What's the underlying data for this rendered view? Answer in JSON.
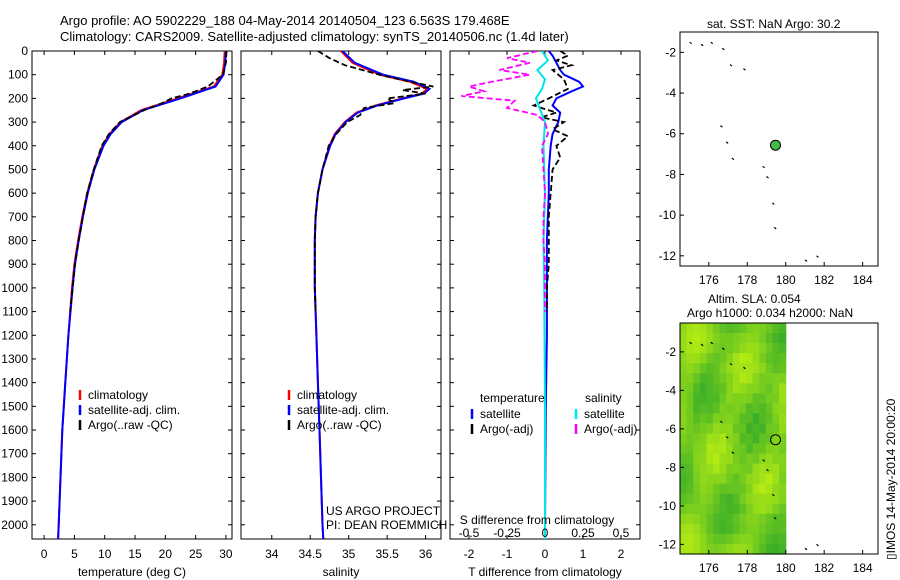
{
  "header": {
    "line1": "Argo profile: AO 5902229_188 04-May-2014 20140504_123 6.563S 179.468E",
    "line2": "Climatology: CARS2009. Satellite-adjusted climatology: synTS_20140506.nc (1.4d later)"
  },
  "side_stamp": "IMOS 14-May-2014 20:00:20",
  "colors": {
    "climatology": "#ff0000",
    "satellite": "#0000ff",
    "argo": "#000000",
    "cyan": "#00e5e5",
    "magenta": "#ff00ff",
    "dot": "#44bb44"
  },
  "chart_data": [
    {
      "type": "line",
      "id": "temperature",
      "xlabel": "temperature (deg C)",
      "ylabel": "",
      "xlim": [
        -2,
        31
      ],
      "ylim": [
        2060,
        0
      ],
      "xticks": [
        0,
        5,
        10,
        15,
        20,
        25,
        30
      ],
      "yticks": [
        0,
        100,
        200,
        300,
        400,
        500,
        600,
        700,
        800,
        900,
        1000,
        1100,
        1200,
        1300,
        1400,
        1500,
        1600,
        1700,
        1800,
        1900,
        2000
      ],
      "legend": [
        "climatology",
        "satellite-adj. clim.",
        "Argo(..raw -QC)"
      ],
      "series": [
        {
          "name": "climatology",
          "depth": [
            0,
            50,
            100,
            150,
            200,
            250,
            300,
            350,
            400,
            500,
            600,
            700,
            800,
            900,
            1000,
            1200,
            1400,
            1600,
            1800,
            2000,
            2060
          ],
          "values": [
            29.8,
            29.7,
            29.4,
            28.0,
            22.0,
            16.0,
            12.6,
            10.8,
            9.6,
            8.2,
            7.1,
            6.3,
            5.6,
            5.0,
            4.6,
            4.0,
            3.5,
            3.0,
            2.7,
            2.4,
            2.3
          ]
        },
        {
          "name": "satellite-adj. clim.",
          "depth": [
            0,
            50,
            100,
            150,
            200,
            250,
            300,
            350,
            400,
            500,
            600,
            700,
            800,
            900,
            1000,
            1200,
            1400,
            1600,
            1800,
            2000,
            2060
          ],
          "values": [
            30.0,
            29.9,
            29.6,
            28.3,
            22.5,
            16.3,
            12.8,
            11.0,
            9.8,
            8.3,
            7.2,
            6.4,
            5.7,
            5.1,
            4.7,
            4.0,
            3.5,
            3.0,
            2.7,
            2.4,
            2.3
          ]
        },
        {
          "name": "Argo(..raw -QC)",
          "depth": [
            0,
            50,
            100,
            150,
            180,
            200,
            220,
            250,
            300,
            350,
            400,
            500,
            600,
            700,
            800,
            900,
            1000,
            1100
          ],
          "values": [
            30.1,
            30.0,
            29.5,
            27.0,
            24.0,
            21.0,
            19.5,
            16.5,
            12.5,
            10.7,
            9.5,
            8.2,
            7.1,
            6.4,
            5.7,
            5.1,
            4.7,
            4.3
          ]
        }
      ]
    },
    {
      "type": "line",
      "id": "salinity",
      "xlabel": "salinity",
      "ylabel": "",
      "xlim": [
        33.6,
        36.2
      ],
      "ylim": [
        2060,
        0
      ],
      "xticks": [
        34,
        34.5,
        35,
        35.5,
        36
      ],
      "legend": [
        "climatology",
        "satellite-adj. clim.",
        "Argo(..raw -QC)"
      ],
      "annotation": [
        "US ARGO PROJECT",
        "PI: DEAN ROEMMICH"
      ],
      "series": [
        {
          "name": "climatology",
          "depth": [
            0,
            50,
            100,
            130,
            160,
            180,
            200,
            230,
            260,
            300,
            350,
            400,
            500,
            600,
            700,
            800,
            1000,
            1200,
            1400,
            1600,
            1800,
            2000,
            2060
          ],
          "values": [
            34.9,
            35.05,
            35.4,
            35.8,
            36.02,
            35.95,
            35.7,
            35.35,
            35.1,
            34.95,
            34.82,
            34.75,
            34.66,
            34.6,
            34.57,
            34.56,
            34.56,
            34.58,
            34.6,
            34.62,
            34.64,
            34.66,
            34.67
          ]
        },
        {
          "name": "satellite-adj. clim.",
          "depth": [
            0,
            50,
            100,
            130,
            160,
            180,
            200,
            230,
            260,
            300,
            350,
            400,
            500,
            600,
            700,
            800,
            1000,
            1200,
            1400,
            1600,
            1800,
            2000,
            2060
          ],
          "values": [
            34.92,
            35.08,
            35.45,
            35.85,
            36.05,
            35.98,
            35.72,
            35.37,
            35.12,
            34.96,
            34.83,
            34.76,
            34.66,
            34.6,
            34.57,
            34.56,
            34.56,
            34.58,
            34.6,
            34.62,
            34.64,
            34.66,
            34.67
          ]
        },
        {
          "name": "Argo(..raw -QC)",
          "depth": [
            0,
            30,
            60,
            100,
            130,
            150,
            165,
            180,
            200,
            220,
            240,
            270,
            300,
            350,
            400,
            500,
            600,
            700,
            800,
            900,
            1000,
            1100
          ],
          "values": [
            34.6,
            34.75,
            34.95,
            35.4,
            35.8,
            36.1,
            35.7,
            36.0,
            35.5,
            35.6,
            35.2,
            35.15,
            34.98,
            34.84,
            34.74,
            34.66,
            34.6,
            34.57,
            34.56,
            34.56,
            34.56,
            34.57
          ]
        }
      ]
    },
    {
      "type": "line",
      "id": "differences",
      "xlabel": "T difference from climatology",
      "xlim": [
        -2.5,
        2.5
      ],
      "xticks": [
        -2,
        -1,
        0,
        1,
        2
      ],
      "top_axis_label": "S difference from climatology",
      "top_ticks": [
        "-0.5",
        "-0.25",
        "0",
        "0.25",
        "0.5"
      ],
      "ylim": [
        2060,
        0
      ],
      "legend_headers": [
        "temperature",
        "salinity"
      ],
      "legend": [
        "satellite",
        "Argo(-adj)",
        "satellite",
        "Argo(-adj)"
      ],
      "series": [
        {
          "name": "T satellite",
          "depth": [
            0,
            20,
            50,
            80,
            100,
            130,
            150,
            170,
            200,
            230,
            260,
            300,
            350,
            400,
            500,
            600,
            800,
            1000,
            1200,
            1500,
            2000,
            2060
          ],
          "values": [
            0.1,
            0.2,
            0.3,
            0.4,
            0.5,
            0.9,
            1.0,
            0.7,
            0.3,
            0.2,
            0.4,
            0.35,
            0.2,
            0.15,
            0.1,
            0.1,
            0.05,
            0.05,
            0.05,
            0.02,
            0.0,
            0.0
          ]
        },
        {
          "name": "T Argo(-adj)",
          "depth": [
            0,
            20,
            40,
            60,
            80,
            120,
            160,
            200,
            230,
            260,
            280,
            300,
            330,
            360,
            400,
            450,
            500,
            600,
            700,
            800,
            900,
            1000,
            1100
          ],
          "values": [
            0.4,
            0.6,
            0.3,
            0.7,
            0.2,
            0.5,
            0.6,
            0.1,
            -0.3,
            0.3,
            -0.1,
            0.5,
            0.2,
            0.6,
            0.3,
            0.4,
            0.2,
            0.15,
            0.1,
            0.1,
            0.1,
            0.05,
            0.05
          ]
        },
        {
          "name": "S satellite",
          "depth": [
            0,
            40,
            80,
            120,
            160,
            200,
            250,
            300,
            400,
            600,
            800,
            1000,
            1500,
            2000,
            2060
          ],
          "values": [
            -0.02,
            0.02,
            -0.05,
            0.0,
            -0.02,
            -0.06,
            -0.03,
            0.0,
            -0.01,
            0.0,
            -0.01,
            -0.005,
            0.0,
            0.0,
            0.0
          ]
        },
        {
          "name": "S Argo(-adj)",
          "depth": [
            0,
            30,
            50,
            80,
            100,
            130,
            150,
            170,
            190,
            210,
            240,
            270,
            300,
            350,
            400,
            500,
            600,
            700,
            800,
            900,
            1000,
            1100
          ],
          "values": [
            -0.05,
            -0.25,
            -0.1,
            -0.3,
            -0.1,
            -0.35,
            -0.5,
            -0.4,
            -0.55,
            -0.2,
            -0.25,
            -0.05,
            0.0,
            0.02,
            -0.02,
            -0.01,
            0.0,
            -0.01,
            -0.01,
            0.0,
            0.0,
            0.0
          ]
        }
      ]
    },
    {
      "type": "scatter",
      "id": "sst_map",
      "title": "sat. SST: NaN Argo: 30.2",
      "xlim": [
        174.5,
        184.8
      ],
      "ylim": [
        -12.5,
        -1.0
      ],
      "xticks": [
        176,
        178,
        180,
        182,
        184
      ],
      "yticks": [
        -2,
        -4,
        -6,
        -8,
        -10,
        -12
      ],
      "float_position": {
        "lon": 179.468,
        "lat": -6.563
      }
    },
    {
      "type": "heatmap",
      "id": "sla_map",
      "title_line1": "Altim. SLA: 0.054",
      "title_line2": "Argo h1000: 0.034 h2000: NaN",
      "xlim": [
        174.5,
        184.8
      ],
      "ylim": [
        -12.5,
        -0.5
      ],
      "xticks": [
        176,
        178,
        180,
        182,
        184
      ],
      "yticks": [
        -2,
        -4,
        -6,
        -8,
        -10,
        -12
      ],
      "data_lon_max": 180.0,
      "float_position": {
        "lon": 179.468,
        "lat": -6.563
      }
    }
  ]
}
